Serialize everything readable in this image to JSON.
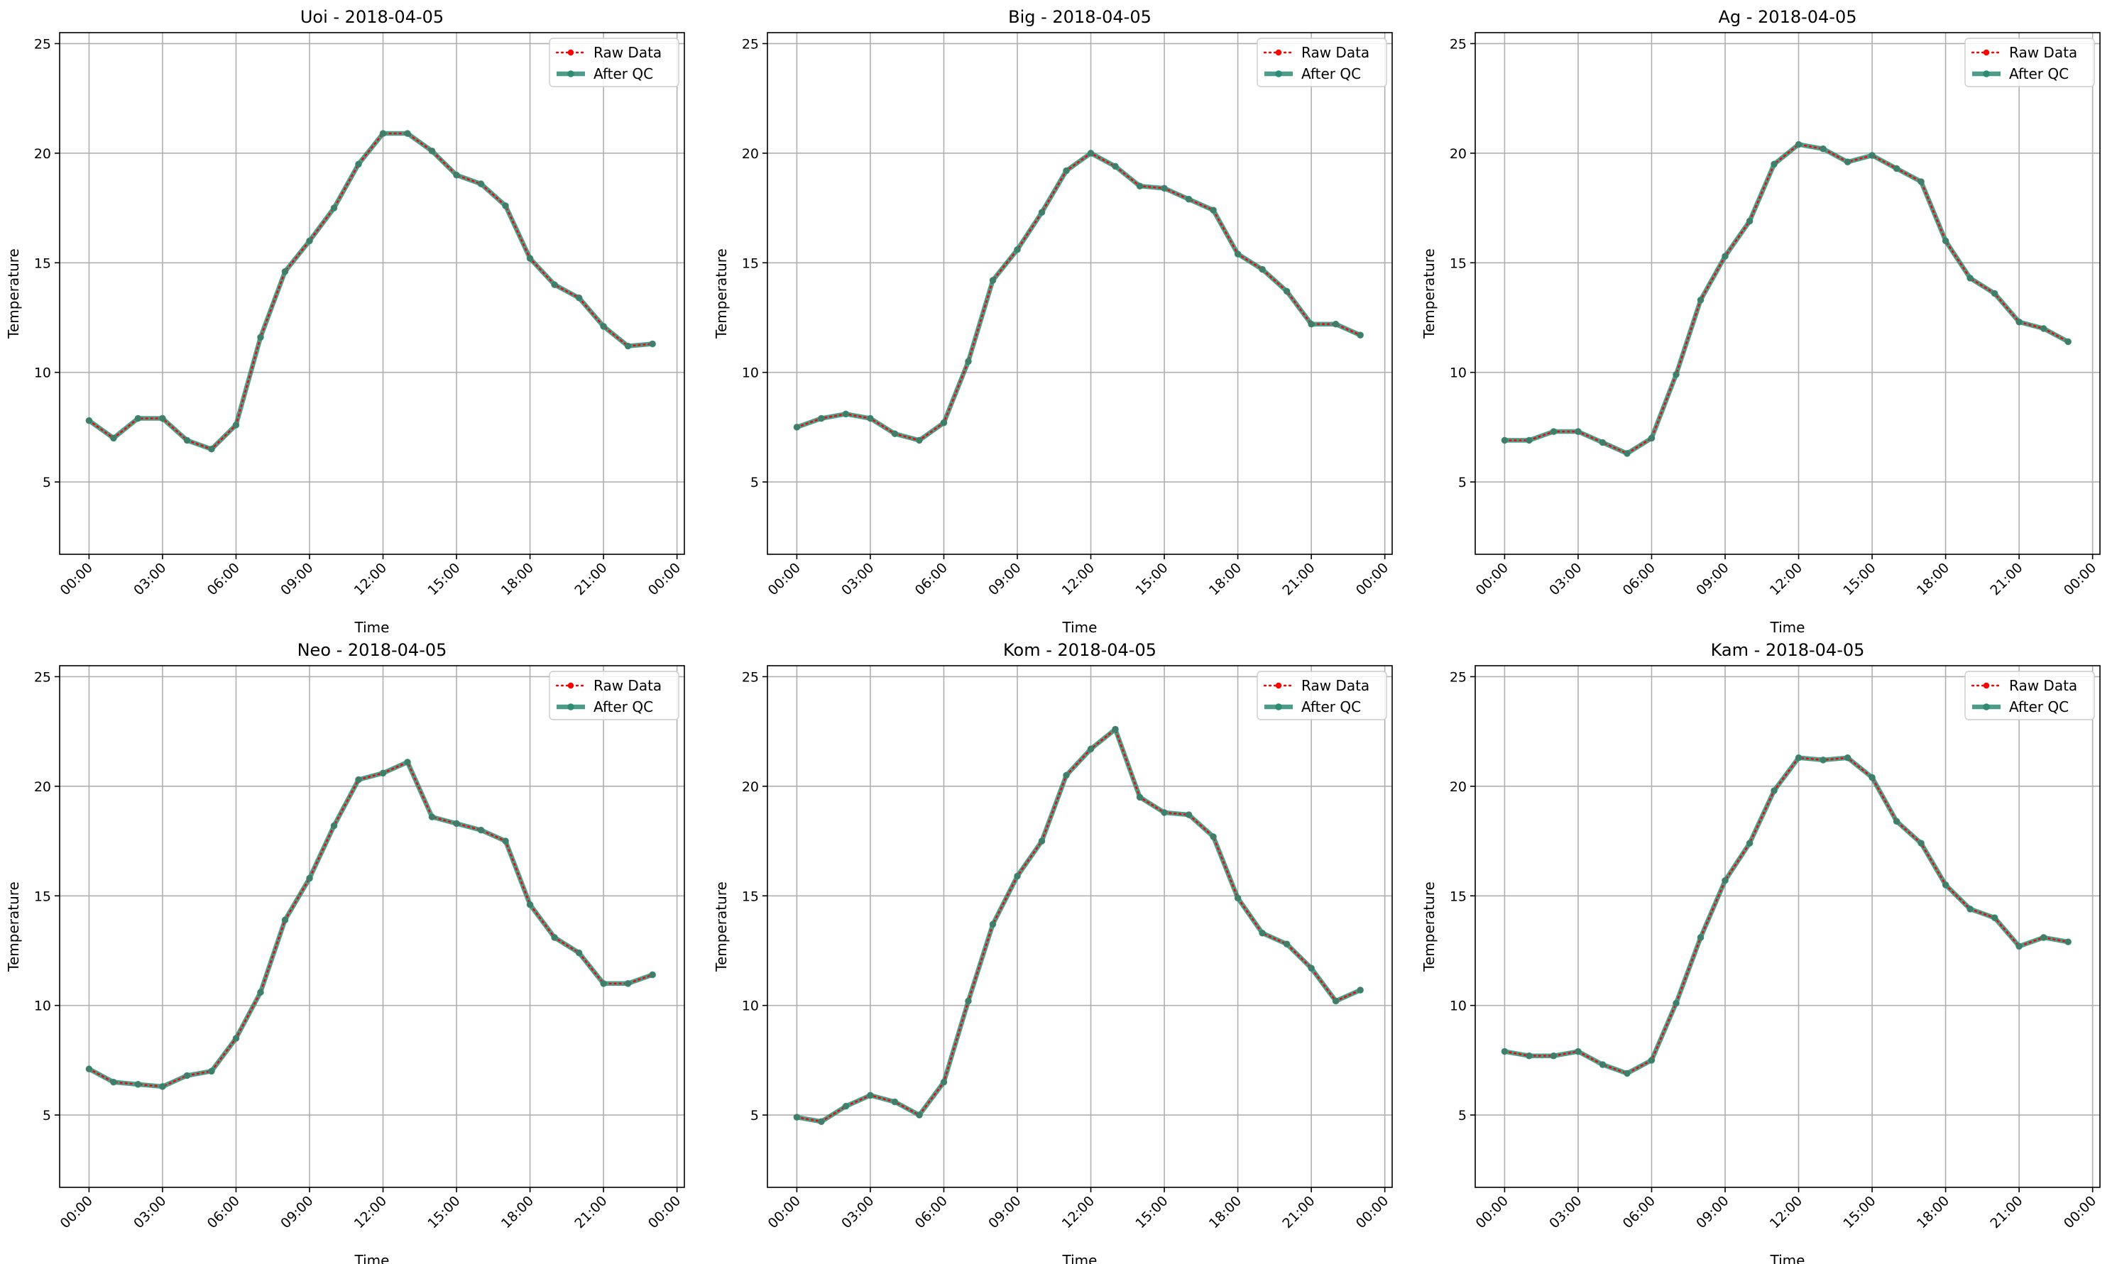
{
  "colors": {
    "raw": "#ff0000",
    "qc": "#2e8b74",
    "grid": "#b0b0b0",
    "axes": "#000000"
  },
  "legend": {
    "raw_label": "Raw Data",
    "qc_label": "After QC",
    "placement": "upper right"
  },
  "chart_data": [
    {
      "type": "line",
      "title": "Uoi - 2018-04-05",
      "xlabel": "Time",
      "ylabel": "Temperature",
      "x_ticks": [
        "00:00",
        "03:00",
        "06:00",
        "09:00",
        "12:00",
        "15:00",
        "18:00",
        "21:00",
        "00:00"
      ],
      "y_ticks": [
        5,
        10,
        15,
        20,
        25
      ],
      "ylim": [
        1.7,
        25.5
      ],
      "x_unit": "hours",
      "xlim": [
        -1.2,
        24.3
      ],
      "x": [
        0,
        1,
        2,
        3,
        4,
        5,
        6,
        7,
        8,
        9,
        10,
        11,
        12,
        13,
        14,
        15,
        16,
        17,
        18,
        19,
        20,
        21,
        22,
        23
      ],
      "series": [
        {
          "name": "Raw Data",
          "values": [
            7.8,
            7.0,
            7.9,
            7.9,
            6.9,
            6.5,
            7.6,
            11.6,
            14.6,
            16.0,
            17.5,
            19.5,
            20.9,
            20.9,
            20.1,
            19.0,
            18.6,
            17.6,
            15.2,
            14.0,
            13.4,
            12.1,
            11.2,
            11.3
          ]
        },
        {
          "name": "After QC",
          "values": [
            7.8,
            7.0,
            7.9,
            7.9,
            6.9,
            6.5,
            7.6,
            11.6,
            14.6,
            16.0,
            17.5,
            19.5,
            20.9,
            20.9,
            20.1,
            19.0,
            18.6,
            17.6,
            15.2,
            14.0,
            13.4,
            12.1,
            11.2,
            11.3
          ]
        }
      ],
      "grid": true
    },
    {
      "type": "line",
      "title": "Big - 2018-04-05",
      "xlabel": "Time",
      "ylabel": "Temperature",
      "x_ticks": [
        "00:00",
        "03:00",
        "06:00",
        "09:00",
        "12:00",
        "15:00",
        "18:00",
        "21:00",
        "00:00"
      ],
      "y_ticks": [
        5,
        10,
        15,
        20,
        25
      ],
      "ylim": [
        1.7,
        25.5
      ],
      "x_unit": "hours",
      "xlim": [
        -1.2,
        24.3
      ],
      "x": [
        0,
        1,
        2,
        3,
        4,
        5,
        6,
        7,
        8,
        9,
        10,
        11,
        12,
        13,
        14,
        15,
        16,
        17,
        18,
        19,
        20,
        21,
        22,
        23
      ],
      "series": [
        {
          "name": "Raw Data",
          "values": [
            7.5,
            7.9,
            8.1,
            7.9,
            7.2,
            6.9,
            7.7,
            10.5,
            14.2,
            15.6,
            17.3,
            19.2,
            20.0,
            19.4,
            18.5,
            18.4,
            17.9,
            17.4,
            15.4,
            14.7,
            13.7,
            12.2,
            12.2,
            11.7
          ]
        },
        {
          "name": "After QC",
          "values": [
            7.5,
            7.9,
            8.1,
            7.9,
            7.2,
            6.9,
            7.7,
            10.5,
            14.2,
            15.6,
            17.3,
            19.2,
            20.0,
            19.4,
            18.5,
            18.4,
            17.9,
            17.4,
            15.4,
            14.7,
            13.7,
            12.2,
            12.2,
            11.7
          ]
        }
      ],
      "grid": true
    },
    {
      "type": "line",
      "title": "Ag - 2018-04-05",
      "xlabel": "Time",
      "ylabel": "Temperature",
      "x_ticks": [
        "00:00",
        "03:00",
        "06:00",
        "09:00",
        "12:00",
        "15:00",
        "18:00",
        "21:00",
        "00:00"
      ],
      "y_ticks": [
        5,
        10,
        15,
        20,
        25
      ],
      "ylim": [
        1.7,
        25.5
      ],
      "x_unit": "hours",
      "xlim": [
        -1.2,
        24.3
      ],
      "x": [
        0,
        1,
        2,
        3,
        4,
        5,
        6,
        7,
        8,
        9,
        10,
        11,
        12,
        13,
        14,
        15,
        16,
        17,
        18,
        19,
        20,
        21,
        22,
        23
      ],
      "series": [
        {
          "name": "Raw Data",
          "values": [
            6.9,
            6.9,
            7.3,
            7.3,
            6.8,
            6.3,
            7.0,
            9.9,
            13.3,
            15.3,
            16.9,
            19.5,
            20.4,
            20.2,
            19.6,
            19.9,
            19.3,
            18.7,
            16.0,
            14.3,
            13.6,
            12.3,
            12.0,
            11.4
          ]
        },
        {
          "name": "After QC",
          "values": [
            6.9,
            6.9,
            7.3,
            7.3,
            6.8,
            6.3,
            7.0,
            9.9,
            13.3,
            15.3,
            16.9,
            19.5,
            20.4,
            20.2,
            19.6,
            19.9,
            19.3,
            18.7,
            16.0,
            14.3,
            13.6,
            12.3,
            12.0,
            11.4
          ]
        }
      ],
      "grid": true
    },
    {
      "type": "line",
      "title": "Neo - 2018-04-05",
      "xlabel": "Time",
      "ylabel": "Temperature",
      "x_ticks": [
        "00:00",
        "03:00",
        "06:00",
        "09:00",
        "12:00",
        "15:00",
        "18:00",
        "21:00",
        "00:00"
      ],
      "y_ticks": [
        5,
        10,
        15,
        20,
        25
      ],
      "ylim": [
        1.7,
        25.5
      ],
      "x_unit": "hours",
      "xlim": [
        -1.2,
        24.3
      ],
      "x": [
        0,
        1,
        2,
        3,
        4,
        5,
        6,
        7,
        8,
        9,
        10,
        11,
        12,
        13,
        14,
        15,
        16,
        17,
        18,
        19,
        20,
        21,
        22,
        23
      ],
      "series": [
        {
          "name": "Raw Data",
          "values": [
            7.1,
            6.5,
            6.4,
            6.3,
            6.8,
            7.0,
            8.5,
            10.6,
            13.9,
            15.8,
            18.2,
            20.3,
            20.6,
            21.1,
            18.6,
            18.3,
            18.0,
            17.5,
            14.6,
            13.1,
            12.4,
            11.0,
            11.0,
            11.4
          ]
        },
        {
          "name": "After QC",
          "values": [
            7.1,
            6.5,
            6.4,
            6.3,
            6.8,
            7.0,
            8.5,
            10.6,
            13.9,
            15.8,
            18.2,
            20.3,
            20.6,
            21.1,
            18.6,
            18.3,
            18.0,
            17.5,
            14.6,
            13.1,
            12.4,
            11.0,
            11.0,
            11.4
          ]
        }
      ],
      "grid": true
    },
    {
      "type": "line",
      "title": "Kom - 2018-04-05",
      "xlabel": "Time",
      "ylabel": "Temperature",
      "x_ticks": [
        "00:00",
        "03:00",
        "06:00",
        "09:00",
        "12:00",
        "15:00",
        "18:00",
        "21:00",
        "00:00"
      ],
      "y_ticks": [
        5,
        10,
        15,
        20,
        25
      ],
      "ylim": [
        1.7,
        25.5
      ],
      "x_unit": "hours",
      "xlim": [
        -1.2,
        24.3
      ],
      "x": [
        0,
        1,
        2,
        3,
        4,
        5,
        6,
        7,
        8,
        9,
        10,
        11,
        12,
        13,
        14,
        15,
        16,
        17,
        18,
        19,
        20,
        21,
        22,
        23
      ],
      "series": [
        {
          "name": "Raw Data",
          "values": [
            4.9,
            4.7,
            5.4,
            5.9,
            5.6,
            5.0,
            6.5,
            10.2,
            13.7,
            15.9,
            17.5,
            20.5,
            21.7,
            22.6,
            19.5,
            18.8,
            18.7,
            17.7,
            14.9,
            13.3,
            12.8,
            11.7,
            10.2,
            10.7
          ]
        },
        {
          "name": "After QC",
          "values": [
            4.9,
            4.7,
            5.4,
            5.9,
            5.6,
            5.0,
            6.5,
            10.2,
            13.7,
            15.9,
            17.5,
            20.5,
            21.7,
            22.6,
            19.5,
            18.8,
            18.7,
            17.7,
            14.9,
            13.3,
            12.8,
            11.7,
            10.2,
            10.7
          ]
        }
      ],
      "grid": true
    },
    {
      "type": "line",
      "title": "Kam - 2018-04-05",
      "xlabel": "Time",
      "ylabel": "Temperature",
      "x_ticks": [
        "00:00",
        "03:00",
        "06:00",
        "09:00",
        "12:00",
        "15:00",
        "18:00",
        "21:00",
        "00:00"
      ],
      "y_ticks": [
        5,
        10,
        15,
        20,
        25
      ],
      "ylim": [
        1.7,
        25.5
      ],
      "x_unit": "hours",
      "xlim": [
        -1.2,
        24.3
      ],
      "x": [
        0,
        1,
        2,
        3,
        4,
        5,
        6,
        7,
        8,
        9,
        10,
        11,
        12,
        13,
        14,
        15,
        16,
        17,
        18,
        19,
        20,
        21,
        22,
        23
      ],
      "series": [
        {
          "name": "Raw Data",
          "values": [
            7.9,
            7.7,
            7.7,
            7.9,
            7.3,
            6.9,
            7.5,
            10.1,
            13.1,
            15.7,
            17.4,
            19.8,
            21.3,
            21.2,
            21.3,
            20.4,
            18.4,
            17.4,
            15.5,
            14.4,
            14.0,
            12.7,
            13.1,
            12.9
          ]
        },
        {
          "name": "After QC",
          "values": [
            7.9,
            7.7,
            7.7,
            7.9,
            7.3,
            6.9,
            7.5,
            10.1,
            13.1,
            15.7,
            17.4,
            19.8,
            21.3,
            21.2,
            21.3,
            20.4,
            18.4,
            17.4,
            15.5,
            14.4,
            14.0,
            12.7,
            13.1,
            12.9
          ]
        }
      ],
      "grid": true
    }
  ]
}
